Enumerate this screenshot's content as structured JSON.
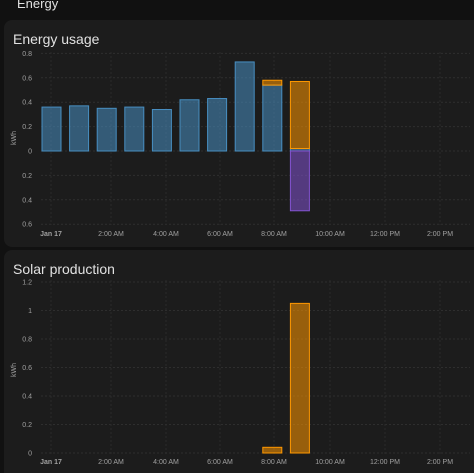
{
  "page": {
    "title": "Energy"
  },
  "colors": {
    "grid_consumption": "#488fc2",
    "solar": "#ff9800",
    "return_to_grid": "#8353d1"
  },
  "usage_card": {
    "title": "Energy usage",
    "chart_data": {
      "type": "bar",
      "title": "Energy usage",
      "ylabel": "kWh",
      "y_ticks_above": [
        "0.8",
        "0.6",
        "0.4",
        "0.2",
        "0"
      ],
      "y_ticks_below": [
        "0.2",
        "0.4",
        "0.6"
      ],
      "ylim": [
        -0.6,
        0.8
      ],
      "categories": [
        "Jan 17 00:00",
        "01:00",
        "02:00",
        "03:00",
        "04:00",
        "05:00",
        "06:00",
        "07:00",
        "08:00",
        "09:00"
      ],
      "x_tick_labels": [
        "Jan 17",
        "2:00 AM",
        "4:00 AM",
        "6:00 AM",
        "8:00 AM",
        "10:00 AM",
        "12:00 PM",
        "2:00 PM"
      ],
      "series": [
        {
          "color_key": "grid_consumption",
          "values": [
            0.36,
            0.37,
            0.35,
            0.36,
            0.34,
            0.42,
            0.43,
            0.73,
            0.54,
            0.02
          ]
        },
        {
          "color_key": "solar",
          "values": [
            0,
            0,
            0,
            0,
            0,
            0,
            0,
            0,
            0.04,
            0.55
          ]
        },
        {
          "color_key": "return_to_grid",
          "values": [
            0,
            0,
            0,
            0,
            0,
            0,
            0,
            0,
            0,
            -0.49
          ]
        }
      ]
    }
  },
  "solar_card": {
    "title": "Solar production",
    "chart_data": {
      "type": "bar",
      "title": "Solar production",
      "ylabel": "kWh",
      "y_ticks": [
        "1.2",
        "1",
        "0.8",
        "0.6",
        "0.4",
        "0.2",
        "0"
      ],
      "ylim": [
        0,
        1.2
      ],
      "categories": [
        "Jan 17 00:00",
        "01:00",
        "02:00",
        "03:00",
        "04:00",
        "05:00",
        "06:00",
        "07:00",
        "08:00",
        "09:00"
      ],
      "x_tick_labels": [
        "Jan 17",
        "2:00 AM",
        "4:00 AM",
        "6:00 AM",
        "8:00 AM",
        "10:00 AM",
        "12:00 PM",
        "2:00 PM"
      ],
      "series": [
        {
          "color_key": "solar",
          "values": [
            0,
            0,
            0,
            0,
            0,
            0,
            0,
            0,
            0.04,
            1.05
          ]
        }
      ]
    }
  }
}
